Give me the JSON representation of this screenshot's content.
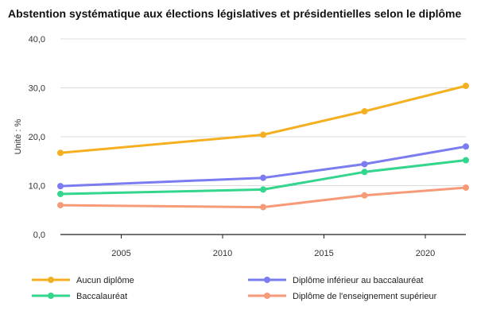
{
  "chart_data": {
    "type": "line",
    "title": "Abstention systématique aux élections législatives et présidentielles selon le diplôme",
    "xlabel": "",
    "ylabel": "Unité : %",
    "x": [
      2002,
      2012,
      2017,
      2022
    ],
    "xlim": [
      2002,
      2022
    ],
    "ylim": [
      0,
      40
    ],
    "xticks": [
      "2005",
      "2010",
      "2015",
      "2020"
    ],
    "yticks": [
      "0,0",
      "10,0",
      "20,0",
      "30,0",
      "40,0"
    ],
    "grid": "horizontal",
    "legend_position": "bottom",
    "series": [
      {
        "name": "Aucun diplôme",
        "color": "#f5b022",
        "values": [
          16.7,
          20.4,
          25.2,
          30.4
        ]
      },
      {
        "name": "Diplôme inférieur au baccalauréat",
        "color": "#7b7cf0",
        "values": [
          9.9,
          11.6,
          14.4,
          18.0
        ]
      },
      {
        "name": "Baccalauréat",
        "color": "#33d68c",
        "values": [
          8.3,
          9.2,
          12.8,
          15.2
        ]
      },
      {
        "name": "Diplôme de l'enseignement supérieur",
        "color": "#f79a78",
        "values": [
          6.0,
          5.6,
          8.0,
          9.6
        ]
      }
    ]
  }
}
